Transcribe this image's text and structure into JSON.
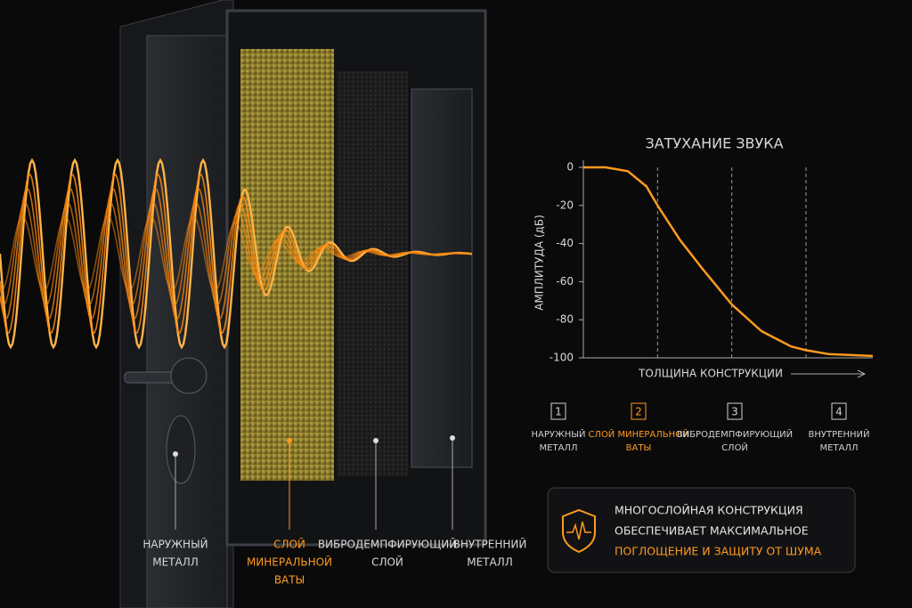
{
  "chart_data": {
    "type": "line",
    "title": "ЗАТУХАНИЕ ЗВУКА",
    "y_label": "АМПЛИТУДА (дБ)",
    "x_label": "ТОЛЩИНА КОНСТРУКЦИИ",
    "xlim": [
      0,
      3.9
    ],
    "ylim": [
      -100,
      0
    ],
    "yticks": [
      0,
      -20,
      -40,
      -60,
      -80,
      -100
    ],
    "dividers": [
      1,
      2,
      3
    ],
    "x": [
      0,
      0.3,
      0.6,
      0.85,
      1.0,
      1.3,
      1.6,
      2.0,
      2.4,
      2.8,
      3.0,
      3.3,
      3.9
    ],
    "series": [
      {
        "color": "#ff9a1f",
        "values": [
          0,
          0,
          -2,
          -10,
          -20,
          -38,
          -53,
          -72,
          -86,
          -94,
          -96,
          -98,
          -99
        ]
      }
    ]
  },
  "door_labels": [
    {
      "lines": [
        "НАРУЖНЫЙ",
        "МЕТАЛЛ"
      ],
      "color": "#d8d8d8"
    },
    {
      "lines": [
        "СЛОЙ",
        "МИНЕРАЛЬНОЙ",
        "ВАТЫ"
      ],
      "color": "#ff9a1f"
    },
    {
      "lines": [
        "ВИБРОДЕМПФИРУЮЩИЙ",
        "СЛОЙ"
      ],
      "color": "#d8d8d8"
    },
    {
      "lines": [
        "ВНУТРЕННИЙ",
        "МЕТАЛЛ"
      ],
      "color": "#d8d8d8"
    }
  ],
  "layers": [
    {
      "number": 1,
      "lines": [
        "НАРУЖНЫЙ",
        "МЕТАЛЛ"
      ],
      "color": "#d0d0d0"
    },
    {
      "number": 2,
      "lines": [
        "СЛОЙ МИНЕРАЛЬНОЙ",
        "ВАТЫ"
      ],
      "color": "#ff9a1f"
    },
    {
      "number": 3,
      "lines": [
        "ВИБРОДЕМПФИРУЮЩИЙ",
        "СЛОЙ"
      ],
      "color": "#d0d0d0"
    },
    {
      "number": 4,
      "lines": [
        "ВНУТРЕННИЙ",
        "МЕТАЛЛ"
      ],
      "color": "#d0d0d0"
    }
  ],
  "callout": {
    "lines": [
      "МНОГОСЛОЙНАЯ КОНСТРУКЦИЯ",
      "ОБЕСПЕЧИВАЕТ МАКСИМАЛЬНОЕ"
    ],
    "highlight": "ПОГЛОЩЕНИЕ И ЗАЩИТУ ОТ ШУМА"
  }
}
